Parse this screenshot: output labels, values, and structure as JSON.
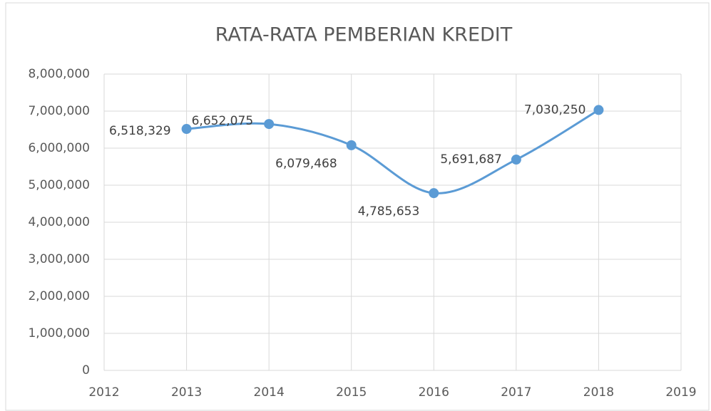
{
  "chart_data": {
    "type": "line",
    "title": "RATA-RATA PEMBERIAN KREDIT",
    "x": [
      2013,
      2014,
      2015,
      2016,
      2017,
      2018
    ],
    "series": [
      {
        "color": "#5b9bd5",
        "values": [
          6518329,
          6652075,
          6079468,
          4785653,
          5691687,
          7030250
        ],
        "value_labels": [
          "6,518,329",
          "6,652,075",
          "6,079,468",
          "4,785,653",
          "5,691,687",
          "7,030,250"
        ]
      }
    ],
    "xlim": [
      2012,
      2019
    ],
    "xticks": [
      2012,
      2013,
      2014,
      2015,
      2016,
      2017,
      2018,
      2019
    ],
    "ylim": [
      0,
      8000000
    ],
    "yticks": [
      0,
      {
        "value": 1000000,
        "label": "1,000,000"
      },
      {
        "value": 2000000,
        "label": "2,000,000"
      },
      {
        "value": 3000000,
        "label": "3,000,000"
      },
      {
        "value": 4000000,
        "label": "4,000,000"
      },
      {
        "value": 5000000,
        "label": "5,000,000"
      },
      {
        "value": 6000000,
        "label": "6,000,000"
      },
      {
        "value": 7000000,
        "label": "7,000,000"
      },
      {
        "value": 8000000,
        "label": "8,000,000"
      }
    ],
    "grid": true,
    "smooth": true
  }
}
